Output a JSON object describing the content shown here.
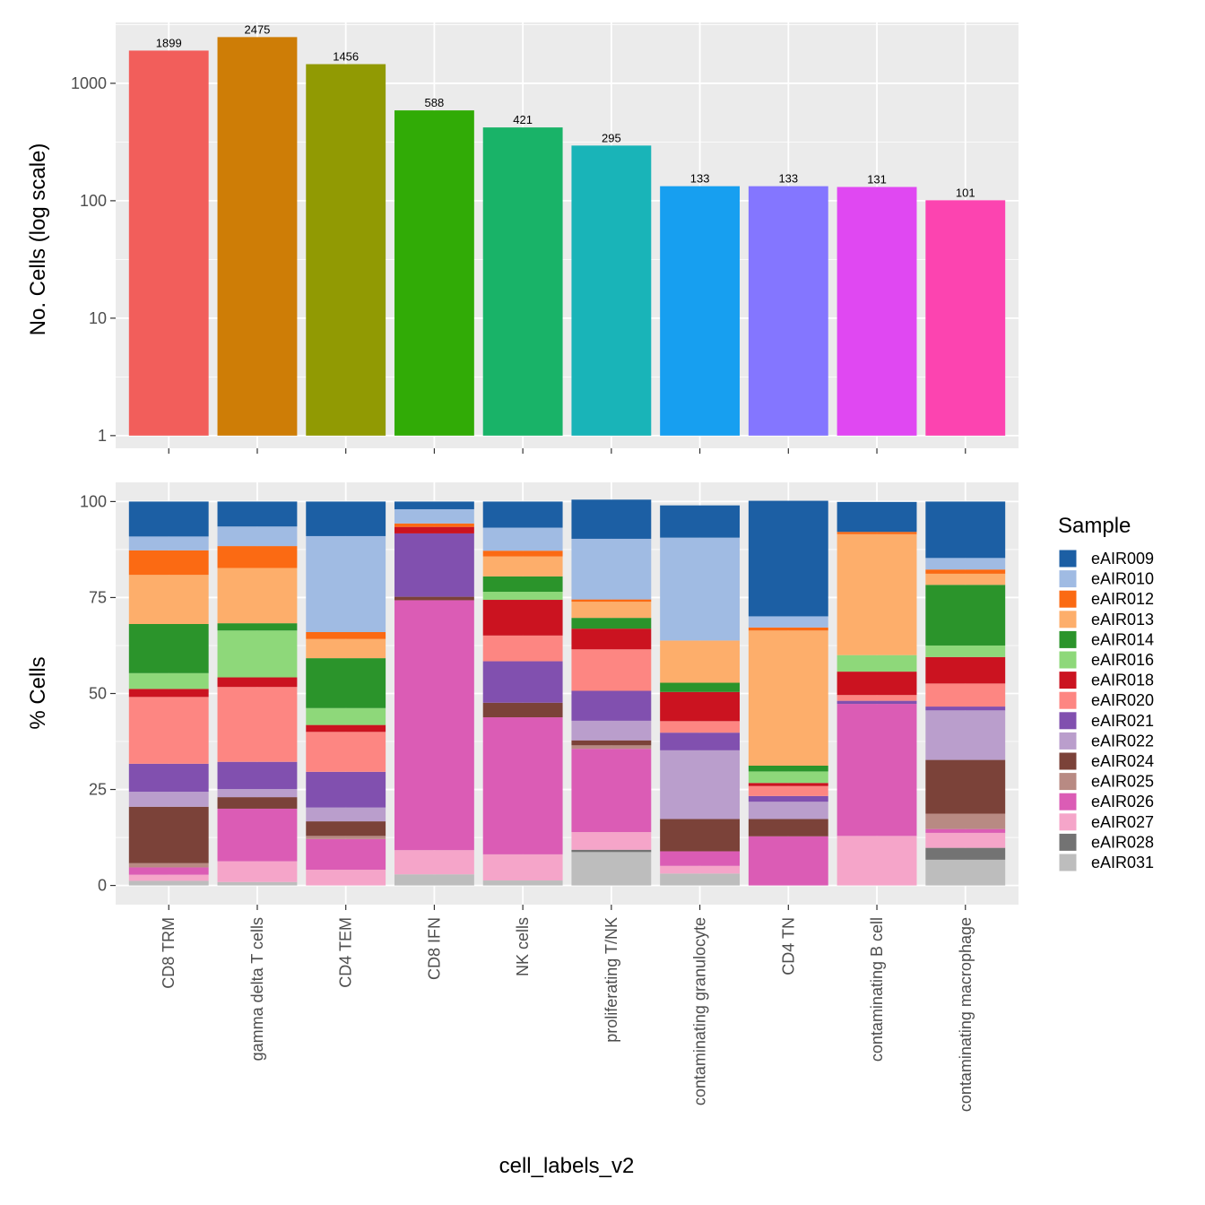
{
  "chart_data": [
    {
      "type": "bar",
      "title": "",
      "xlabel": "cell_labels_v2",
      "ylabel": "No. Cells (log scale)",
      "yscale": "log10",
      "ylim": [
        1,
        3300
      ],
      "yticks": [
        1,
        10,
        100,
        1000
      ],
      "ytick_labels": [
        "1",
        "10",
        "100",
        "1000"
      ],
      "categories": [
        "CD8 TRM",
        "gamma delta T cells",
        "CD4 TEM",
        "CD8 IFN",
        "NK cells",
        "proliferating T/NK",
        "contaminating granulocyte",
        "CD4 TN",
        "contaminating  B cell",
        "contaminating macrophage"
      ],
      "values": [
        1899,
        2475,
        1456,
        588,
        421,
        295,
        133,
        133,
        131,
        101
      ],
      "data_labels": [
        "1899",
        "2475",
        "1456",
        "588",
        "421",
        "295",
        "133",
        "133",
        "131",
        "101"
      ],
      "colors": [
        "#F25E5B",
        "#CE7D06",
        "#919A03",
        "#31AB06",
        "#19B368",
        "#19B4B8",
        "#179FF0",
        "#8476FF",
        "#E048F2",
        "#FC44B0"
      ],
      "grid": true
    },
    {
      "type": "bar",
      "stacked": true,
      "xlabel": "cell_labels_v2",
      "ylabel": "% Cells",
      "ylim": [
        -5,
        105
      ],
      "yticks": [
        0,
        25,
        50,
        75,
        100
      ],
      "ytick_labels": [
        "0",
        "25",
        "50",
        "75",
        "100"
      ],
      "grid": true,
      "legend": {
        "title": "Sample",
        "position": "right"
      },
      "categories": [
        "CD8 TRM",
        "gamma delta T cells",
        "CD4 TEM",
        "CD8 IFN",
        "NK cells",
        "proliferating T/NK",
        "contaminating granulocyte",
        "CD4 TN",
        "contaminating  B cell",
        "contaminating macrophage"
      ],
      "series": [
        {
          "name": "eAIR009",
          "color": "#1C5FA4",
          "values": [
            9.1,
            6.5,
            9.0,
            2.0,
            6.8,
            10.2,
            8.4,
            30.1,
            7.8,
            14.7
          ]
        },
        {
          "name": "eAIR010",
          "color": "#A0BBE3",
          "values": [
            3.6,
            5.1,
            25.0,
            3.7,
            6.0,
            15.8,
            26.8,
            2.9,
            0.0,
            3.0
          ]
        },
        {
          "name": "eAIR012",
          "color": "#FB6A13",
          "values": [
            6.4,
            5.7,
            1.8,
            0.9,
            1.5,
            0.6,
            0.0,
            0.8,
            0.6,
            1.1
          ]
        },
        {
          "name": "eAIR013",
          "color": "#FDAE6B",
          "values": [
            12.8,
            14.4,
            5.0,
            0.0,
            5.2,
            4.2,
            11.0,
            35.2,
            31.5,
            2.9
          ]
        },
        {
          "name": "eAIR014",
          "color": "#2B942B",
          "values": [
            12.8,
            1.9,
            13.0,
            0.0,
            4.0,
            2.8,
            2.4,
            1.5,
            0.0,
            15.8
          ]
        },
        {
          "name": "eAIR016",
          "color": "#8ED87A",
          "values": [
            4.1,
            12.2,
            4.4,
            0.0,
            2.1,
            0.0,
            0.0,
            3.0,
            4.3,
            3.0
          ]
        },
        {
          "name": "eAIR018",
          "color": "#CB1320",
          "values": [
            2.1,
            2.5,
            1.8,
            1.7,
            9.3,
            5.4,
            7.6,
            0.8,
            6.1,
            6.9
          ]
        },
        {
          "name": "eAIR020",
          "color": "#FD8682",
          "values": [
            17.4,
            19.5,
            10.4,
            0.0,
            6.7,
            10.8,
            3.0,
            2.6,
            1.5,
            6.0
          ]
        },
        {
          "name": "eAIR021",
          "color": "#8150AF",
          "values": [
            7.3,
            7.1,
            9.3,
            16.5,
            10.8,
            7.8,
            4.6,
            1.5,
            0.8,
            1.0
          ]
        },
        {
          "name": "eAIR022",
          "color": "#BA9ECC",
          "values": [
            3.9,
            2.1,
            3.6,
            0.0,
            0.0,
            5.1,
            17.9,
            4.5,
            0.0,
            12.9
          ]
        },
        {
          "name": "eAIR024",
          "color": "#7B4239",
          "values": [
            14.7,
            3.0,
            3.8,
            0.9,
            3.8,
            1.3,
            8.4,
            4.5,
            0.0,
            14.0
          ]
        },
        {
          "name": "eAIR025",
          "color": "#B88A83",
          "values": [
            1.1,
            0.0,
            0.8,
            0.0,
            0.0,
            0.9,
            0.0,
            0.0,
            0.0,
            4.0
          ]
        },
        {
          "name": "eAIR026",
          "color": "#DB5CB5",
          "values": [
            1.9,
            13.7,
            8.0,
            65.1,
            35.7,
            21.7,
            3.8,
            12.8,
            34.4,
            1.0
          ]
        },
        {
          "name": "eAIR027",
          "color": "#F5A5C9",
          "values": [
            1.6,
            5.4,
            4.1,
            6.3,
            6.8,
            4.6,
            2.0,
            0.0,
            12.9,
            3.9
          ]
        },
        {
          "name": "eAIR028",
          "color": "#737373",
          "values": [
            0.0,
            0.0,
            0.0,
            0.0,
            0.0,
            0.6,
            0.0,
            0.0,
            0.0,
            3.1
          ]
        },
        {
          "name": "eAIR031",
          "color": "#BDBDBD",
          "values": [
            1.2,
            0.9,
            0.0,
            2.9,
            1.3,
            8.7,
            3.1,
            0.0,
            0.0,
            6.7
          ]
        }
      ]
    }
  ]
}
